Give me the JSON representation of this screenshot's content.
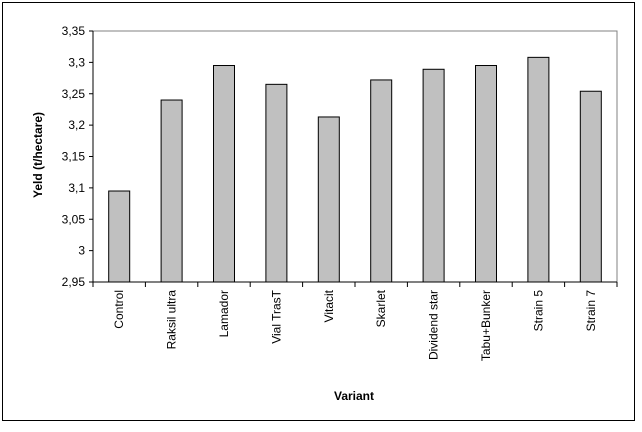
{
  "chart_data": {
    "type": "bar",
    "title": "",
    "xlabel": "Variant",
    "ylabel": "Yeld (t/hectare)",
    "ylim": [
      2.95,
      3.35
    ],
    "ytick_step": 0.05,
    "ytick_labels": [
      "2,95",
      "3",
      "3,05",
      "3,1",
      "3,15",
      "3,2",
      "3,25",
      "3,3",
      "3,35"
    ],
    "categories": [
      "Control",
      "Raksil ultra",
      "Lamador",
      "Vial TrasT",
      "Vitacit",
      "Skarlet",
      "Dividend star",
      "Tabu+Bunker",
      "Strain 5",
      "Strain 7"
    ],
    "values": [
      3.095,
      3.24,
      3.295,
      3.265,
      3.213,
      3.272,
      3.289,
      3.295,
      3.308,
      3.254
    ],
    "bar_color": "#c0c0c0",
    "bar_edge_color": "#000000",
    "grid": false,
    "legend": "none"
  }
}
